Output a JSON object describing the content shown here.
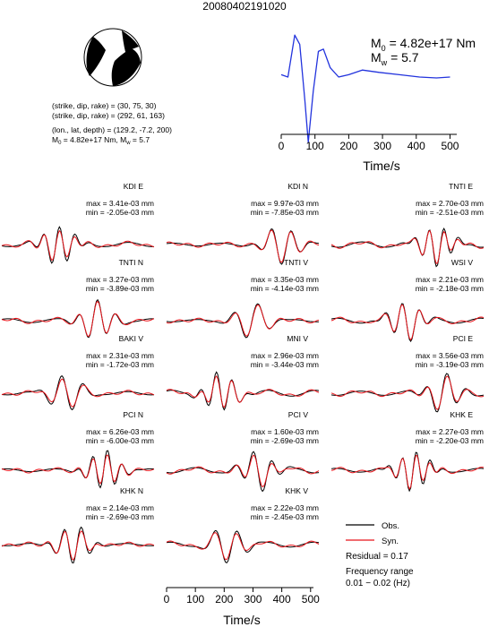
{
  "title": "20080402191020",
  "mechanism": {
    "line1": "(strike, dip, rake) = (30, 75, 30)",
    "line2": "(strike, dip, rake) = (292, 61, 163)",
    "line3": "(lon., lat, depth) = (129.2, -7.2, 200)",
    "line4_m0": "4.82e+17 Nm",
    "line4_mw": "5.7"
  },
  "stf": {
    "m0_label": "M",
    "m0_sub": "0",
    "m0_value": "= 4.82e+17 Nm",
    "mw_label": "M",
    "mw_sub": "w",
    "mw_value": "= 5.7",
    "xlabel": "Time/s",
    "xticks": [
      "0",
      "100",
      "200",
      "300",
      "400",
      "500"
    ]
  },
  "bottom_axis": {
    "xlabel": "Time/s",
    "xticks": [
      "0",
      "100",
      "200",
      "300",
      "400",
      "500"
    ]
  },
  "legend": {
    "obs": "Obs.",
    "syn": "Syn.",
    "residual": "Residual = 0.17",
    "freq_title": "Frequency range",
    "freq_value": "0.01 − 0.02 (Hz)",
    "obs_color": "#000000",
    "syn_color": "#e8141a"
  },
  "chart_data": [
    {
      "type": "line",
      "name": "source-time-function",
      "x": [
        0,
        20,
        40,
        55,
        70,
        80,
        95,
        110,
        125,
        145,
        170,
        200,
        240,
        290,
        350,
        410,
        460,
        500
      ],
      "y": [
        0.05,
        0.0,
        0.9,
        0.7,
        -0.5,
        -1.4,
        -0.3,
        0.55,
        0.6,
        0.2,
        0.0,
        0.05,
        0.15,
        0.1,
        0.05,
        0.0,
        -0.02,
        0.0
      ],
      "color": "#2233dd",
      "xlim": [
        0,
        520
      ]
    },
    {
      "type": "line",
      "name": "waveforms",
      "panels": [
        {
          "station": "KDI E",
          "max": "max = 3.41e-03 mm",
          "min": "min = -2.05e-03 mm"
        },
        {
          "station": "KDI N",
          "max": "max = 9.97e-03 mm",
          "min": "min = -7.85e-03 mm"
        },
        {
          "station": "TNTI E",
          "max": "max = 2.70e-03 mm",
          "min": "min = -2.51e-03 mm"
        },
        {
          "station": "TNTI N",
          "max": "max = 3.27e-03 mm",
          "min": "min = -3.89e-03 mm"
        },
        {
          "station": "TNTI V",
          "max": "max = 3.35e-03 mm",
          "min": "min = -4.14e-03 mm"
        },
        {
          "station": "WSI V",
          "max": "max = 2.21e-03 mm",
          "min": "min = -2.18e-03 mm"
        },
        {
          "station": "BAKI V",
          "max": "max = 2.31e-03 mm",
          "min": "min = -1.72e-03 mm"
        },
        {
          "station": "MNI V",
          "max": "max = 2.96e-03 mm",
          "min": "min = -3.44e-03 mm"
        },
        {
          "station": "PCI E",
          "max": "max = 3.56e-03 mm",
          "min": "min = -3.19e-03 mm"
        },
        {
          "station": "PCI N",
          "max": "max = 6.26e-03 mm",
          "min": "min = -6.00e-03 mm"
        },
        {
          "station": "PCI V",
          "max": "max = 1.60e-03 mm",
          "min": "min = -2.69e-03 mm"
        },
        {
          "station": "KHK E",
          "max": "max = 2.27e-03 mm",
          "min": "min = -2.20e-03 mm"
        },
        {
          "station": "KHK N",
          "max": "max = 2.14e-03 mm",
          "min": "min = -2.69e-03 mm"
        },
        {
          "station": "KHK V",
          "max": "max = 2.22e-03 mm",
          "min": "min = -2.45e-03 mm"
        }
      ],
      "xlim": [
        0,
        510
      ]
    }
  ]
}
